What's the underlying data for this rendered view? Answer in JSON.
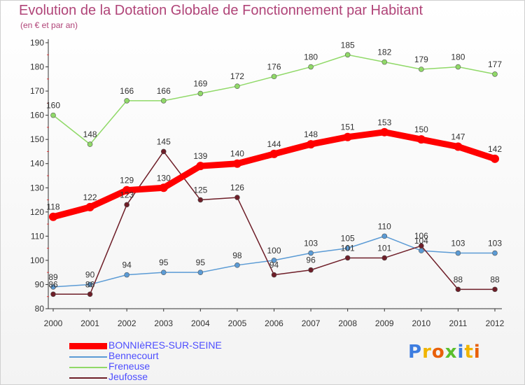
{
  "chart_data": {
    "type": "line",
    "title": "Evolution de la Dotation Globale de Fonctionnement par Habitant",
    "subtitle": "(en € et par an)",
    "categories": [
      "2000",
      "2001",
      "2002",
      "2003",
      "2004",
      "2005",
      "2006",
      "2007",
      "2008",
      "2009",
      "2010",
      "2011",
      "2012"
    ],
    "ylim": [
      80,
      190
    ],
    "yticks": [
      80,
      90,
      100,
      110,
      120,
      130,
      140,
      150,
      160,
      170,
      180,
      190
    ],
    "grid": false,
    "legend_position": "bottom-left",
    "series": [
      {
        "name": "BONNIèRES-SUR-SEINE",
        "color": "#ff0000",
        "emphasis": true,
        "values": [
          118,
          122,
          129,
          130,
          139,
          140,
          144,
          148,
          151,
          153,
          150,
          147,
          142
        ]
      },
      {
        "name": "Bennecourt",
        "color": "#5b9bd5",
        "emphasis": false,
        "values": [
          89,
          90,
          94,
          95,
          95,
          98,
          100,
          103,
          105,
          110,
          104,
          103,
          103
        ]
      },
      {
        "name": "Freneuse",
        "color": "#90d968",
        "emphasis": false,
        "values": [
          160,
          148,
          166,
          166,
          169,
          172,
          176,
          180,
          185,
          182,
          179,
          180,
          177
        ]
      },
      {
        "name": "Jeufosse",
        "color": "#6e1e28",
        "emphasis": false,
        "values": [
          86,
          86,
          123,
          145,
          125,
          126,
          94,
          96,
          101,
          101,
          106,
          88,
          88
        ]
      }
    ]
  },
  "logo": {
    "text": "Proxiti",
    "letter_colors": [
      "#3d7de0",
      "#f0b400",
      "#e8600a",
      "#5bbf2c",
      "#3d7de0",
      "#f0b400",
      "#e8600a"
    ]
  }
}
